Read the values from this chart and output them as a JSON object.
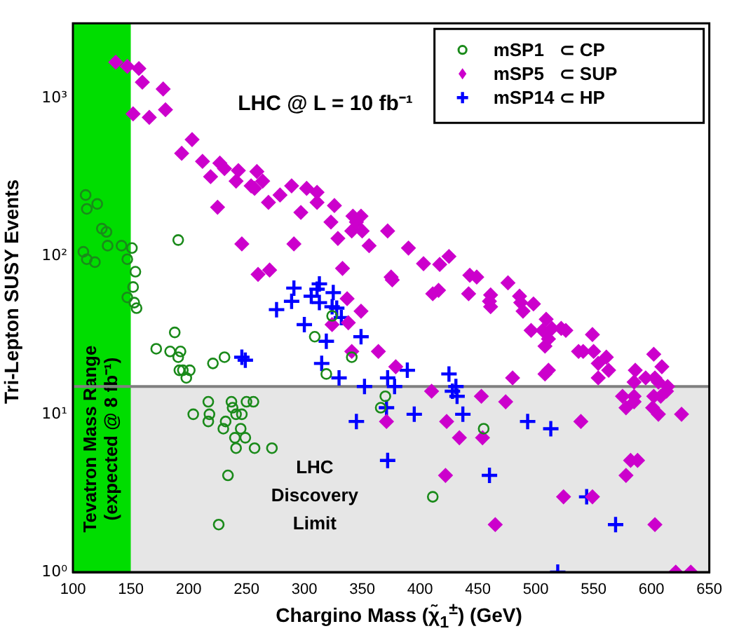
{
  "chart_data": {
    "type": "scatter",
    "xlabel": "Chargino Mass  (χ̃$_{1}$$^{±}$)  (GeV)",
    "ylabel": "Tri-Lepton SUSY Events",
    "xlim": [
      100,
      650
    ],
    "xticks": [
      100,
      150,
      200,
      250,
      300,
      350,
      400,
      450,
      500,
      550,
      600,
      650
    ],
    "ylim": [
      1,
      3000
    ],
    "yticks": [
      {
        "value": 1,
        "label": "10⁰"
      },
      {
        "value": 10,
        "label": "10¹"
      },
      {
        "value": 100,
        "label": "10²"
      },
      {
        "value": 1000,
        "label": "10³"
      }
    ],
    "log": "y",
    "grid": false,
    "legend": "top right",
    "annotations": [
      "LHC @ L = 10 fb⁻¹"
    ],
    "bands": [
      {
        "axis": "y",
        "from": 1,
        "to": 15,
        "label": "LHC Discovery Limit",
        "color": "#e6e6e6"
      },
      {
        "axis": "x",
        "from": 100,
        "to": 150,
        "label": "Tevatron Mass Range (expected @ 8 fb⁻¹)",
        "color": "#00dd00"
      }
    ],
    "ref_lines": [
      {
        "axis": "y",
        "value": 15,
        "color": "#808080"
      }
    ],
    "series": [
      {
        "name": "mSP1   ⊂ CP",
        "color": "#1a8a1a",
        "marker": "circle",
        "x": [
          111,
          112,
          121,
          125,
          129,
          130,
          109,
          112,
          119,
          142,
          147,
          151,
          154,
          152,
          147,
          153,
          155,
          191,
          188,
          172,
          184,
          193,
          191,
          192,
          195,
          201,
          198,
          221,
          231,
          217,
          204,
          218,
          217,
          237,
          238,
          241,
          246,
          250,
          256,
          232,
          230,
          245,
          240,
          249,
          241,
          257,
          272,
          234,
          226,
          324,
          309,
          319,
          341,
          370,
          366,
          455,
          411
        ],
        "values": [
          245,
          200,
          215,
          150,
          143,
          117,
          107,
          96,
          92,
          117,
          96,
          113,
          80,
          64,
          55,
          51,
          47,
          127,
          33,
          26,
          25,
          25,
          23,
          19,
          19,
          19,
          17,
          21,
          23,
          12,
          10,
          10,
          9,
          12,
          11,
          10,
          10,
          12,
          12,
          9,
          8.1,
          8.1,
          7.1,
          7.1,
          6.1,
          6.1,
          6.1,
          4.1,
          2,
          42,
          31,
          18,
          23,
          13,
          11,
          8.1,
          3
        ]
      },
      {
        "name": "mSP5   ⊂ SUP",
        "color": "#cc00cc",
        "marker": "diamond",
        "x": [
          137,
          147,
          157,
          160,
          178,
          180,
          152,
          166,
          203,
          194,
          212,
          227,
          231,
          219,
          243,
          259,
          241,
          264,
          254,
          257,
          289,
          279,
          269,
          302,
          311,
          311,
          326,
          225,
          297,
          323,
          342,
          349,
          345,
          341,
          350,
          329,
          356,
          246,
          291,
          333,
          260,
          270,
          337,
          349,
          372,
          390,
          403,
          417,
          425,
          375,
          376,
          443,
          449,
          476,
          416,
          411,
          442,
          461,
          486,
          460,
          487,
          498,
          461,
          489,
          496,
          506,
          508,
          338,
          324,
          341,
          364,
          379,
          480,
          410,
          453,
          474,
          371,
          423,
          434,
          454,
          422,
          465,
          509,
          514,
          511,
          522,
          526,
          549,
          537,
          541,
          550,
          554,
          561,
          563,
          554,
          508,
          511,
          602,
          609,
          586,
          585,
          595,
          603,
          606,
          614,
          613,
          608,
          602,
          575,
          585,
          585,
          578,
          601,
          606,
          626,
          539,
          582,
          588,
          578,
          524,
          549,
          603,
          621,
          634
        ],
        "values": [
          1700,
          1600,
          1550,
          1270,
          1150,
          850,
          800,
          760,
          550,
          450,
          400,
          390,
          360,
          320,
          350,
          345,
          300,
          300,
          280,
          270,
          280,
          245,
          220,
          270,
          255,
          220,
          210,
          205,
          190,
          165,
          180,
          180,
          165,
          145,
          145,
          130,
          117,
          120,
          120,
          84,
          77,
          82,
          54,
          45,
          145,
          113,
          90,
          89,
          100,
          74,
          71,
          76,
          74,
          68,
          61,
          58,
          58,
          57,
          56,
          52,
          51,
          50,
          48,
          45,
          34,
          34,
          27,
          38,
          37,
          25,
          25,
          20,
          17,
          14,
          13,
          12,
          9,
          9,
          7.1,
          7.1,
          4.1,
          2,
          40,
          35,
          30,
          35,
          34,
          32,
          25,
          25,
          25,
          21,
          23,
          19,
          17,
          18,
          19,
          24,
          20,
          19,
          16,
          17,
          17,
          16,
          15,
          14,
          13,
          13,
          13,
          13,
          12,
          11,
          11,
          10,
          10,
          9,
          5.1,
          5.1,
          4.1,
          3,
          3,
          2,
          1,
          1
        ]
      },
      {
        "name": "mSP14 ⊂ HP",
        "color": "#0000ff",
        "marker": "cross",
        "x": [
          291,
          313,
          311,
          325,
          289,
          306,
          313,
          324,
          328,
          276,
          332,
          300,
          319,
          349,
          315,
          330,
          352,
          246,
          249,
          372,
          378,
          389,
          425,
          431,
          428,
          432,
          371,
          395,
          437,
          345,
          493,
          372,
          460,
          513,
          544,
          569,
          519
        ],
        "values": [
          63,
          67,
          62,
          59,
          52,
          56,
          51,
          48,
          47,
          46,
          41,
          37,
          29,
          31,
          21,
          17,
          15,
          23,
          22,
          17,
          15,
          19,
          18,
          15,
          14,
          13,
          11,
          10,
          10,
          9,
          9,
          5.1,
          4.1,
          8.1,
          3,
          2,
          1
        ]
      }
    ]
  }
}
